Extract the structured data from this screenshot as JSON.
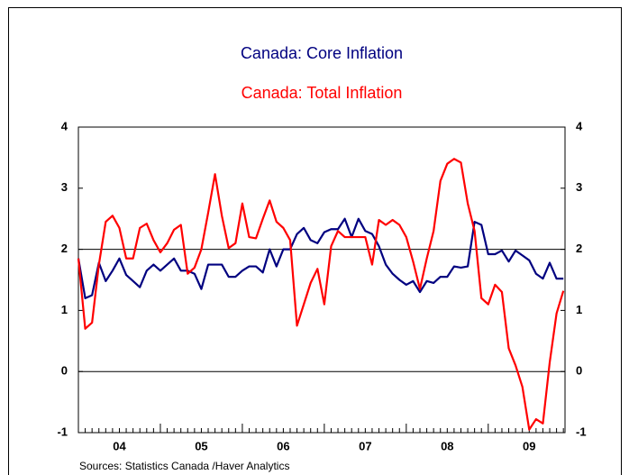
{
  "chart_data": {
    "type": "line",
    "title": "Canada: Core Inflation",
    "subtitle": "Canada: Total Inflation",
    "source": "Sources:  Statistics Canada /Haver Analytics",
    "categories": [
      null,
      null,
      null,
      null,
      null,
      null,
      "04",
      null,
      null,
      null,
      null,
      null,
      null,
      null,
      null,
      null,
      null,
      null,
      "05",
      null,
      null,
      null,
      null,
      null,
      null,
      null,
      null,
      null,
      null,
      null,
      "06",
      null,
      null,
      null,
      null,
      null,
      null,
      null,
      null,
      null,
      null,
      null,
      "07",
      null,
      null,
      null,
      null,
      null,
      null,
      null,
      null,
      null,
      null,
      null,
      "08",
      null,
      null,
      null,
      null,
      null,
      null,
      null,
      null,
      null,
      null,
      null,
      "09",
      null,
      null,
      null,
      null,
      null
    ],
    "series": [
      {
        "name": "Canada: Core Inflation",
        "color": "#000080",
        "values": [
          1.85,
          1.2,
          1.25,
          1.78,
          1.48,
          1.65,
          1.85,
          1.58,
          1.48,
          1.38,
          1.65,
          1.75,
          1.65,
          1.75,
          1.85,
          1.65,
          1.65,
          1.6,
          1.35,
          1.75,
          1.75,
          1.75,
          1.55,
          1.55,
          1.65,
          1.72,
          1.72,
          1.62,
          2.0,
          1.72,
          2.0,
          2.0,
          2.25,
          2.35,
          2.15,
          2.1,
          2.28,
          2.33,
          2.33,
          2.5,
          2.2,
          2.5,
          2.3,
          2.25,
          2.05,
          1.75,
          1.6,
          1.5,
          1.42,
          1.48,
          1.3,
          1.48,
          1.45,
          1.55,
          1.55,
          1.72,
          1.7,
          1.72,
          2.45,
          2.4,
          1.92,
          1.92,
          1.98,
          1.8,
          1.98,
          1.9,
          1.82,
          1.6,
          1.52,
          1.78,
          1.52,
          1.52
        ]
      },
      {
        "name": "Canada: Total Inflation",
        "color": "#ff0000",
        "values": [
          1.85,
          0.7,
          0.8,
          1.75,
          2.45,
          2.55,
          2.35,
          1.85,
          1.85,
          2.35,
          2.42,
          2.15,
          1.95,
          2.1,
          2.32,
          2.4,
          1.6,
          1.7,
          2.0,
          2.6,
          3.23,
          2.55,
          2.02,
          2.1,
          2.75,
          2.2,
          2.18,
          2.5,
          2.8,
          2.45,
          2.35,
          2.15,
          0.75,
          1.1,
          1.45,
          1.68,
          1.1,
          2.05,
          2.3,
          2.2,
          2.2,
          2.2,
          2.2,
          1.75,
          2.48,
          2.4,
          2.48,
          2.4,
          2.2,
          1.8,
          1.35,
          1.85,
          2.3,
          3.12,
          3.4,
          3.48,
          3.42,
          2.75,
          2.3,
          1.2,
          1.1,
          1.42,
          1.3,
          0.38,
          0.1,
          -0.25,
          -0.95,
          -0.78,
          -0.85,
          0.15,
          0.95,
          1.32
        ]
      }
    ],
    "ylim": [
      -1,
      4
    ],
    "yticks": [
      -1,
      0,
      1,
      2,
      3,
      4
    ],
    "reference_lines": [
      0,
      2
    ]
  }
}
